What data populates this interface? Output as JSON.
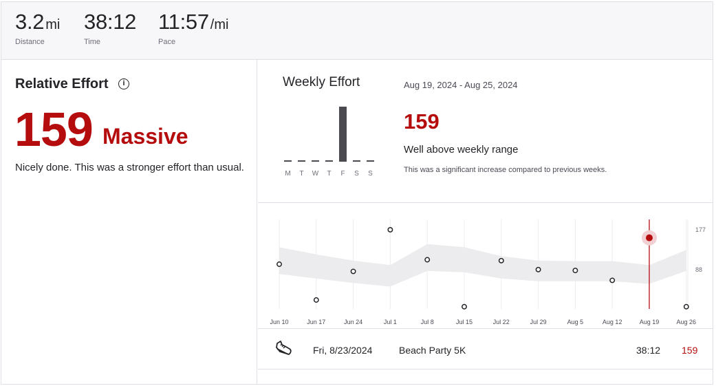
{
  "stats": {
    "distance": {
      "value": "3.2",
      "unit": "mi",
      "label": "Distance"
    },
    "time": {
      "value": "38:12",
      "unit": "",
      "label": "Time"
    },
    "pace": {
      "value": "11:57",
      "unit": "/mi",
      "label": "Pace"
    }
  },
  "relative_effort": {
    "title": "Relative Effort",
    "info_icon": "info-icon",
    "score": "159",
    "level": "Massive",
    "description": "Nicely done. This was a stronger effort than usual."
  },
  "weekly_effort": {
    "title": "Weekly Effort",
    "date_range": "Aug 19, 2024 - Aug 25, 2024",
    "score": "159",
    "range_text": "Well above weekly range",
    "note": "This was a significant increase compared to previous weeks.",
    "days": [
      "M",
      "T",
      "W",
      "T",
      "F",
      "S",
      "S"
    ],
    "day_values": [
      0,
      0,
      0,
      0,
      159,
      0,
      0
    ],
    "accent_color": "#4a4a50"
  },
  "chart_data": {
    "type": "scatter",
    "categories": [
      "Jun 10",
      "Jun 17",
      "Jun 24",
      "Jul 1",
      "Jul 8",
      "Jul 15",
      "Jul 22",
      "Jul 29",
      "Aug 5",
      "Aug 12",
      "Aug 19",
      "Aug 26"
    ],
    "values": [
      100,
      20,
      84,
      177,
      110,
      5,
      108,
      88,
      86,
      64,
      159,
      5
    ],
    "range_upper": [
      138,
      122,
      108,
      98,
      145,
      138,
      118,
      108,
      107,
      107,
      98,
      132
    ],
    "range_lower": [
      78,
      68,
      58,
      50,
      85,
      82,
      68,
      62,
      62,
      62,
      56,
      85
    ],
    "yticks": [
      177,
      88
    ],
    "ylim": [
      0,
      200
    ],
    "highlight_index": 10,
    "highlight_color": "#b50d0d"
  },
  "activity": {
    "icon": "shoe-icon",
    "date": "Fri, 8/23/2024",
    "name": "Beach Party 5K",
    "time": "38:12",
    "score": "159"
  }
}
